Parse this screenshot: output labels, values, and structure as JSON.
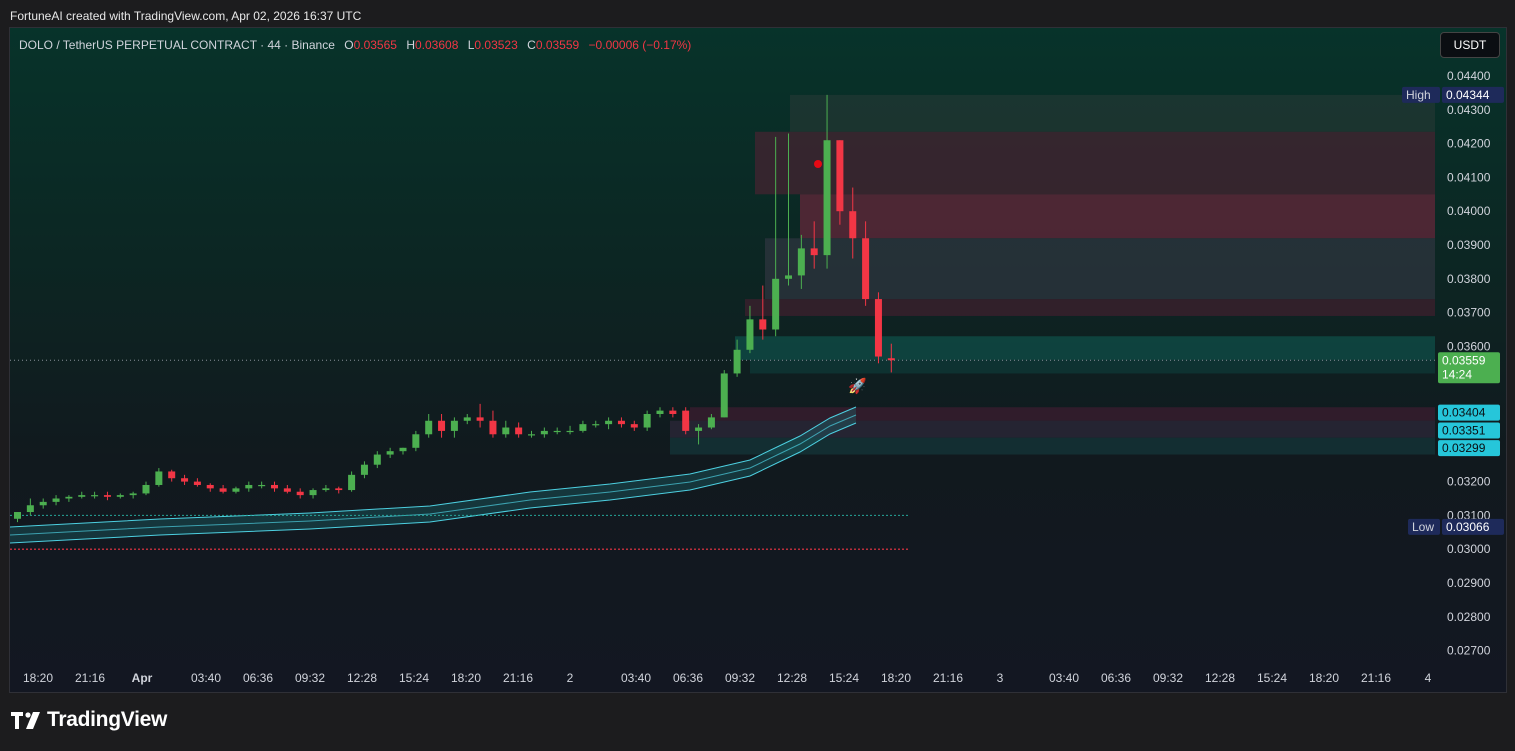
{
  "credit": "FortuneAI created with TradingView.com, Apr 02, 2026 16:37 UTC",
  "legend": {
    "symbol": "DOLO / TetherUS PERPETUAL CONTRACT · 44 · Binance",
    "o_label": "O",
    "o": "0.03565",
    "h_label": "H",
    "h": "0.03608",
    "l_label": "L",
    "l": "0.03523",
    "c_label": "C",
    "c": "0.03559",
    "change": "−0.00006 (−0.17%)"
  },
  "unit_button": "USDT",
  "logo_text": "TradingView",
  "colors": {
    "up": "#4caf50",
    "down": "#f23645",
    "accent": "#26c6da",
    "price_label": "#4caf50"
  },
  "chart_data": {
    "type": "candlestick",
    "y_ticks": [
      "0.04400",
      "0.04300",
      "0.04200",
      "0.04100",
      "0.04000",
      "0.03900",
      "0.03800",
      "0.03700",
      "0.03600",
      "0.03200",
      "0.03100",
      "0.03000",
      "0.02900",
      "0.02800",
      "0.02700"
    ],
    "x_ticks": [
      "18:20",
      "21:16",
      "Apr",
      "03:40",
      "06:36",
      "09:32",
      "12:28",
      "15:24",
      "18:20",
      "21:16",
      "2",
      "03:40",
      "06:36",
      "09:32",
      "12:28",
      "15:24",
      "18:20",
      "21:16",
      "3",
      "03:40",
      "06:36",
      "09:32",
      "12:28",
      "15:24",
      "18:20",
      "21:16",
      "4"
    ],
    "ylim": [
      0.0265,
      0.045
    ],
    "labels": {
      "high": {
        "tag": "High",
        "value": "0.04344"
      },
      "low": {
        "tag": "Low",
        "value": "0.03066"
      },
      "last": {
        "value": "0.03559",
        "countdown": "14:24"
      },
      "levels": [
        "0.03404",
        "0.03351",
        "0.03299"
      ]
    },
    "candles": [
      [
        0.0309,
        0.0311,
        0.0308,
        0.0311
      ],
      [
        0.0311,
        0.0315,
        0.031,
        0.0313
      ],
      [
        0.0313,
        0.0315,
        0.0312,
        0.0314
      ],
      [
        0.0314,
        0.0316,
        0.0313,
        0.0315
      ],
      [
        0.0315,
        0.0316,
        0.0314,
        0.03155
      ],
      [
        0.03155,
        0.0317,
        0.0315,
        0.0316
      ],
      [
        0.0316,
        0.0317,
        0.0315,
        0.0316
      ],
      [
        0.0316,
        0.0317,
        0.03145,
        0.03155
      ],
      [
        0.03155,
        0.03165,
        0.0315,
        0.0316
      ],
      [
        0.0316,
        0.0317,
        0.0315,
        0.03165
      ],
      [
        0.03165,
        0.032,
        0.0316,
        0.0319
      ],
      [
        0.0319,
        0.0324,
        0.03185,
        0.0323
      ],
      [
        0.0323,
        0.03235,
        0.032,
        0.0321
      ],
      [
        0.0321,
        0.0322,
        0.0319,
        0.032
      ],
      [
        0.032,
        0.0321,
        0.03185,
        0.0319
      ],
      [
        0.0319,
        0.03195,
        0.0317,
        0.0318
      ],
      [
        0.0318,
        0.0319,
        0.03165,
        0.0317
      ],
      [
        0.0317,
        0.03185,
        0.03165,
        0.0318
      ],
      [
        0.0318,
        0.032,
        0.0317,
        0.0319
      ],
      [
        0.0319,
        0.032,
        0.0318,
        0.0319
      ],
      [
        0.0319,
        0.032,
        0.0317,
        0.0318
      ],
      [
        0.0318,
        0.0319,
        0.03165,
        0.0317
      ],
      [
        0.0317,
        0.0318,
        0.0315,
        0.0316
      ],
      [
        0.0316,
        0.0318,
        0.0315,
        0.03175
      ],
      [
        0.03175,
        0.0319,
        0.0317,
        0.0318
      ],
      [
        0.0318,
        0.03185,
        0.03165,
        0.03175
      ],
      [
        0.03175,
        0.0323,
        0.0317,
        0.0322
      ],
      [
        0.0322,
        0.0326,
        0.0321,
        0.0325
      ],
      [
        0.0325,
        0.0329,
        0.0324,
        0.0328
      ],
      [
        0.0328,
        0.033,
        0.0327,
        0.0329
      ],
      [
        0.0329,
        0.033,
        0.0328,
        0.033
      ],
      [
        0.033,
        0.0335,
        0.0329,
        0.0334
      ],
      [
        0.0334,
        0.034,
        0.0333,
        0.0338
      ],
      [
        0.0338,
        0.034,
        0.0333,
        0.0335
      ],
      [
        0.0335,
        0.0339,
        0.0333,
        0.0338
      ],
      [
        0.0338,
        0.034,
        0.0337,
        0.0339
      ],
      [
        0.0339,
        0.0343,
        0.0336,
        0.0338
      ],
      [
        0.0338,
        0.0341,
        0.0333,
        0.0334
      ],
      [
        0.0334,
        0.0338,
        0.0333,
        0.0336
      ],
      [
        0.0336,
        0.03375,
        0.0333,
        0.0334
      ],
      [
        0.0334,
        0.0335,
        0.0333,
        0.0334
      ],
      [
        0.0334,
        0.0336,
        0.0333,
        0.0335
      ],
      [
        0.0335,
        0.0336,
        0.0334,
        0.0335
      ],
      [
        0.0335,
        0.03365,
        0.0334,
        0.0335
      ],
      [
        0.0335,
        0.0338,
        0.03345,
        0.0337
      ],
      [
        0.0337,
        0.0338,
        0.0336,
        0.0337
      ],
      [
        0.0337,
        0.0339,
        0.03355,
        0.0338
      ],
      [
        0.0338,
        0.0339,
        0.0336,
        0.0337
      ],
      [
        0.0337,
        0.0338,
        0.0335,
        0.0336
      ],
      [
        0.0336,
        0.0341,
        0.0335,
        0.034
      ],
      [
        0.034,
        0.0342,
        0.0339,
        0.0341
      ],
      [
        0.0341,
        0.0342,
        0.0339,
        0.034
      ],
      [
        0.0341,
        0.0342,
        0.0334,
        0.0335
      ],
      [
        0.0335,
        0.0337,
        0.0331,
        0.0336
      ],
      [
        0.0336,
        0.034,
        0.03355,
        0.0339
      ],
      [
        0.0339,
        0.0353,
        0.0339,
        0.0352
      ],
      [
        0.0352,
        0.0362,
        0.0351,
        0.0359
      ],
      [
        0.0359,
        0.0372,
        0.0358,
        0.0368
      ],
      [
        0.0368,
        0.0378,
        0.0362,
        0.0365
      ],
      [
        0.0365,
        0.0422,
        0.0363,
        0.038
      ],
      [
        0.038,
        0.0423,
        0.0378,
        0.0381
      ],
      [
        0.0381,
        0.0393,
        0.0377,
        0.0389
      ],
      [
        0.0389,
        0.0397,
        0.0383,
        0.0387
      ],
      [
        0.0387,
        0.04344,
        0.0383,
        0.0421
      ],
      [
        0.0421,
        0.0421,
        0.0396,
        0.04
      ],
      [
        0.04,
        0.0407,
        0.0386,
        0.0392
      ],
      [
        0.0392,
        0.0397,
        0.0372,
        0.0374
      ],
      [
        0.0374,
        0.0376,
        0.0355,
        0.0357
      ],
      [
        0.03565,
        0.03608,
        0.03523,
        0.03559
      ]
    ]
  }
}
